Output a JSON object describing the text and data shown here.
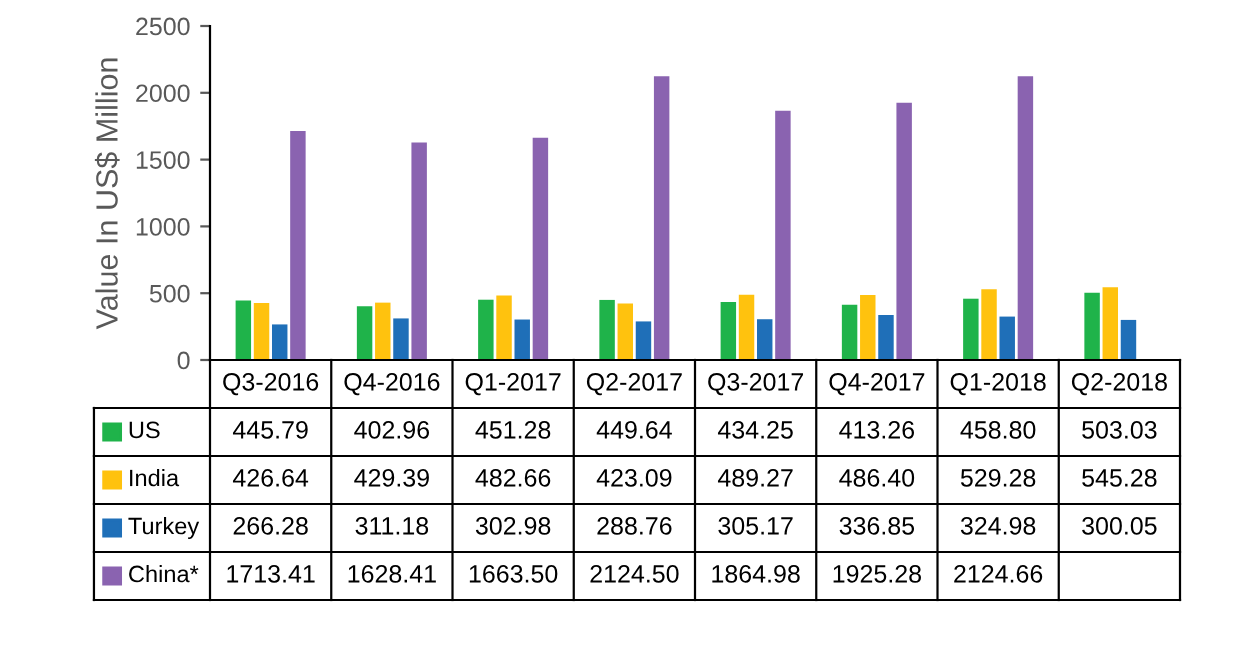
{
  "chart_data": {
    "type": "bar",
    "ylabel": "Value In US$ Million",
    "categories": [
      "Q3-2016",
      "Q4-2016",
      "Q1-2017",
      "Q2-2017",
      "Q3-2017",
      "Q4-2017",
      "Q1-2018",
      "Q2-2018"
    ],
    "series": [
      {
        "name": "US",
        "color": "#1fb34a",
        "values": [
          445.79,
          402.96,
          451.28,
          449.64,
          434.25,
          413.26,
          458.8,
          503.03
        ],
        "value_labels": [
          "445.79",
          "402.96",
          "451.28",
          "449.64",
          "434.25",
          "413.26",
          "458.80",
          "503.03"
        ]
      },
      {
        "name": "India",
        "color": "#ffc20e",
        "values": [
          426.64,
          429.39,
          482.66,
          423.09,
          489.27,
          486.4,
          529.28,
          545.28
        ],
        "value_labels": [
          "426.64",
          "429.39",
          "482.66",
          "423.09",
          "489.27",
          "486.40",
          "529.28",
          "545.28"
        ]
      },
      {
        "name": "Turkey",
        "color": "#1f6fb8",
        "values": [
          266.28,
          311.18,
          302.98,
          288.76,
          305.17,
          336.85,
          324.98,
          300.05
        ],
        "value_labels": [
          "266.28",
          "311.18",
          "302.98",
          "288.76",
          "305.17",
          "336.85",
          "324.98",
          "300.05"
        ]
      },
      {
        "name": "China*",
        "color": "#8a63b0",
        "values": [
          1713.41,
          1628.41,
          1663.5,
          2124.5,
          1864.98,
          1925.28,
          2124.66,
          null
        ],
        "value_labels": [
          "1713.41",
          "1628.41",
          "1663.50",
          "2124.50",
          "1864.98",
          "1925.28",
          "2124.66",
          null
        ]
      }
    ],
    "ylim": [
      0,
      2500
    ],
    "yticks": [
      0,
      500,
      1000,
      1500,
      2000,
      2500
    ],
    "grid": false,
    "legend": "bottom"
  }
}
